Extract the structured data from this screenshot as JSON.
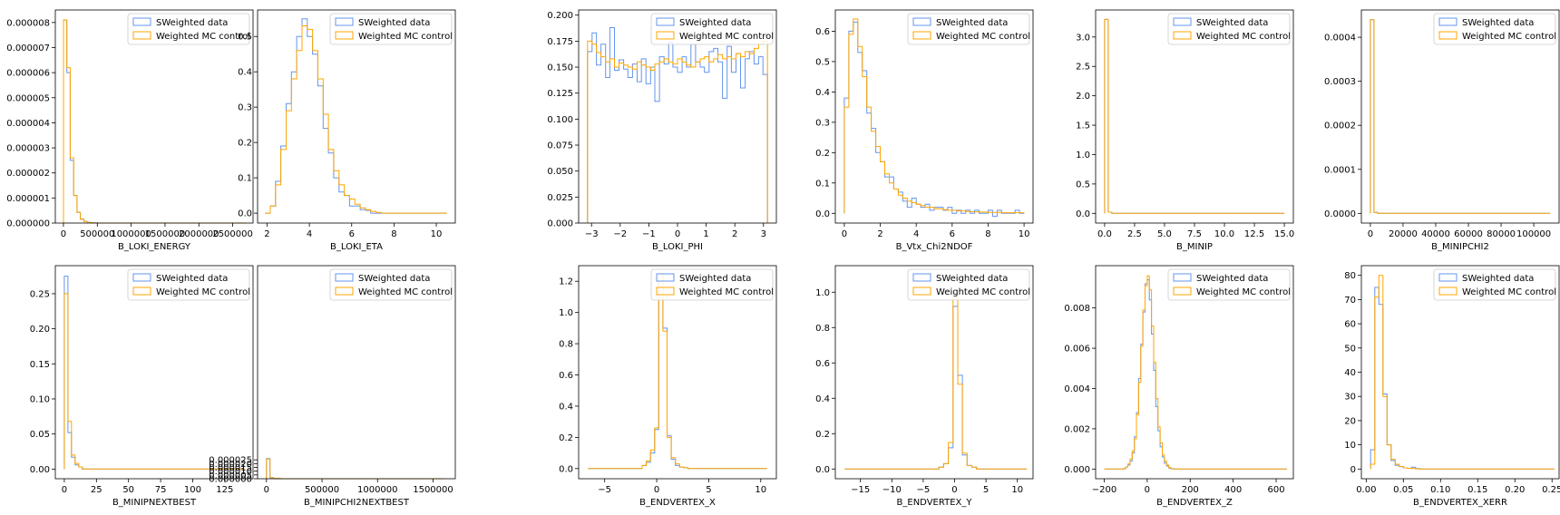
{
  "colors": {
    "sweighted": "#6495ED",
    "weighted_mc": "#FFA500"
  },
  "legend": {
    "sweighted_label": "SWeighted data",
    "weighted_mc_label": "Weighted MC control"
  },
  "chart_data": [
    {
      "type": "histogram",
      "xlabel": "B_LOKI_ENERGY",
      "legend_position": "top-right",
      "xlim": [
        -120000,
        2800000
      ],
      "ylim": [
        0,
        8.5e-06
      ],
      "xticks": [
        0,
        500000,
        1000000,
        1500000,
        2000000,
        2500000
      ],
      "xtick_labels": [
        "0",
        "500000",
        "1000000",
        "1500000",
        "2000000",
        "2500000"
      ],
      "yticks": [
        0,
        1e-06,
        2e-06,
        3e-06,
        4e-06,
        5e-06,
        6e-06,
        7e-06,
        8e-06
      ],
      "ytick_labels": [
        "0.000000",
        "0.000001",
        "0.000002",
        "0.000003",
        "0.000004",
        "0.000005",
        "0.000006",
        "0.000007",
        "0.000008"
      ],
      "bins": [
        0,
        50000,
        100000,
        150000,
        200000,
        250000,
        300000,
        350000,
        400000,
        450000,
        500000,
        550000,
        600000,
        2700000
      ],
      "sweighted": [
        8.1e-06,
        6e-06,
        2.5e-06,
        1.1e-06,
        4.3e-07,
        1.6e-07,
        7e-08,
        3e-08,
        1e-08,
        5e-09,
        0,
        0,
        0
      ],
      "weighted_mc": [
        8.1e-06,
        6.2e-06,
        2.6e-06,
        1.1e-06,
        4.2e-07,
        1.5e-07,
        6e-08,
        2e-08,
        1e-08,
        5e-09,
        0,
        0,
        0
      ]
    },
    {
      "type": "histogram",
      "xlabel": "B_LOKI_ETA",
      "legend_position": "top-right",
      "xlim": [
        1.55,
        10.9
      ],
      "ylim": [
        -0.028,
        0.575
      ],
      "xticks": [
        2,
        4,
        6,
        8,
        10
      ],
      "xtick_labels": [
        "2",
        "4",
        "6",
        "8",
        "10"
      ],
      "yticks": [
        0,
        0.1,
        0.2,
        0.3,
        0.4,
        0.5
      ],
      "ytick_labels": [
        "0.0",
        "0.1",
        "0.2",
        "0.3",
        "0.4",
        "0.5"
      ],
      "bins": [
        1.9,
        2.15,
        2.4,
        2.65,
        2.9,
        3.15,
        3.4,
        3.65,
        3.9,
        4.15,
        4.4,
        4.65,
        4.9,
        5.15,
        5.4,
        5.65,
        5.9,
        6.15,
        6.4,
        6.65,
        6.9,
        7.15,
        7.4,
        7.65,
        7.9,
        10.5
      ],
      "sweighted": [
        0,
        0.02,
        0.09,
        0.19,
        0.31,
        0.4,
        0.5,
        0.55,
        0.5,
        0.45,
        0.36,
        0.24,
        0.17,
        0.1,
        0.06,
        0.05,
        0.02,
        0.02,
        0.01,
        0.008,
        0,
        0,
        0,
        0,
        0
      ],
      "weighted_mc": [
        0,
        0.02,
        0.08,
        0.18,
        0.29,
        0.38,
        0.46,
        0.53,
        0.52,
        0.46,
        0.38,
        0.28,
        0.18,
        0.12,
        0.08,
        0.05,
        0.04,
        0.025,
        0.015,
        0.01,
        0.005,
        0.002,
        0,
        0,
        0
      ]
    },
    {
      "type": "histogram",
      "xlabel": "B_LOKI_PHI",
      "legend_position": "top-right",
      "xlim": [
        -3.45,
        3.45
      ],
      "ylim": [
        0,
        0.205
      ],
      "xticks": [
        -3,
        -2,
        -1,
        0,
        1,
        2,
        3
      ],
      "xtick_labels": [
        "−3",
        "−2",
        "−1",
        "0",
        "1",
        "2",
        "3"
      ],
      "yticks": [
        0,
        0.025,
        0.05,
        0.075,
        0.1,
        0.125,
        0.15,
        0.175,
        0.2
      ],
      "ytick_labels": [
        "0.000",
        "0.025",
        "0.050",
        "0.075",
        "0.100",
        "0.125",
        "0.150",
        "0.175",
        "0.200"
      ],
      "bins": [
        -3.14,
        -2.98,
        -2.83,
        -2.67,
        -2.51,
        -2.36,
        -2.2,
        -2.04,
        -1.88,
        -1.73,
        -1.57,
        -1.41,
        -1.26,
        -1.1,
        -0.94,
        -0.79,
        -0.63,
        -0.47,
        -0.31,
        -0.16,
        0,
        0.16,
        0.31,
        0.47,
        0.63,
        0.79,
        0.94,
        1.1,
        1.26,
        1.41,
        1.57,
        1.73,
        1.88,
        2.04,
        2.2,
        2.36,
        2.51,
        2.67,
        2.83,
        2.98,
        3.14
      ],
      "sweighted": [
        0.165,
        0.183,
        0.152,
        0.172,
        0.14,
        0.188,
        0.147,
        0.157,
        0.148,
        0.14,
        0.153,
        0.136,
        0.158,
        0.134,
        0.15,
        0.117,
        0.16,
        0.153,
        0.174,
        0.15,
        0.145,
        0.16,
        0.15,
        0.172,
        0.155,
        0.15,
        0.145,
        0.165,
        0.168,
        0.155,
        0.12,
        0.17,
        0.145,
        0.163,
        0.13,
        0.158,
        0.165,
        0.153,
        0.16,
        0.143
      ],
      "weighted_mc": [
        0.175,
        0.172,
        0.164,
        0.16,
        0.155,
        0.158,
        0.15,
        0.154,
        0.152,
        0.15,
        0.148,
        0.155,
        0.152,
        0.15,
        0.147,
        0.153,
        0.155,
        0.158,
        0.155,
        0.153,
        0.158,
        0.155,
        0.152,
        0.15,
        0.155,
        0.158,
        0.16,
        0.155,
        0.158,
        0.162,
        0.158,
        0.16,
        0.158,
        0.163,
        0.16,
        0.165,
        0.163,
        0.168,
        0.172,
        0.175
      ]
    },
    {
      "type": "histogram",
      "xlabel": "B_Vtx_Chi2NDOF",
      "legend_position": "top-right",
      "xlim": [
        -0.5,
        10.5
      ],
      "ylim": [
        -0.032,
        0.67
      ],
      "xticks": [
        0,
        2,
        4,
        6,
        8,
        10
      ],
      "xtick_labels": [
        "0",
        "2",
        "4",
        "6",
        "8",
        "10"
      ],
      "yticks": [
        0,
        0.1,
        0.2,
        0.3,
        0.4,
        0.5,
        0.6
      ],
      "ytick_labels": [
        "0.0",
        "0.1",
        "0.2",
        "0.3",
        "0.4",
        "0.5",
        "0.6"
      ],
      "bins": [
        0,
        0.25,
        0.5,
        0.75,
        1,
        1.25,
        1.5,
        1.75,
        2,
        2.25,
        2.5,
        2.75,
        3,
        3.25,
        3.5,
        3.75,
        4,
        4.25,
        4.5,
        4.75,
        5,
        5.25,
        5.5,
        5.75,
        6,
        6.25,
        6.5,
        6.75,
        7,
        7.25,
        7.5,
        7.75,
        8,
        8.25,
        8.5,
        8.75,
        9,
        9.25,
        9.5,
        9.75,
        10
      ],
      "sweighted": [
        0.38,
        0.6,
        0.63,
        0.53,
        0.47,
        0.33,
        0.28,
        0.2,
        0.17,
        0.12,
        0.12,
        0.08,
        0.07,
        0.04,
        0.02,
        0.05,
        0.03,
        0.02,
        0.03,
        0.01,
        0.02,
        0.02,
        0.01,
        0.02,
        0,
        0.01,
        0,
        0.01,
        0,
        0.01,
        0,
        0,
        0.01,
        -0.01,
        0.01,
        0,
        0,
        0,
        0.01,
        0
      ],
      "weighted_mc": [
        0.35,
        0.59,
        0.64,
        0.55,
        0.45,
        0.35,
        0.27,
        0.22,
        0.17,
        0.13,
        0.1,
        0.08,
        0.06,
        0.05,
        0.04,
        0.035,
        0.03,
        0.025,
        0.02,
        0.02,
        0.015,
        0.015,
        0.012,
        0.01,
        0.01,
        0.008,
        0.008,
        0.006,
        0.005,
        0.005,
        0.004,
        0.004,
        0.003,
        0.003,
        0.003,
        0.002,
        0.002,
        0.002,
        0.002,
        0.002
      ]
    },
    {
      "type": "histogram",
      "xlabel": "B_MINIP",
      "legend_position": "top-right",
      "xlim": [
        -0.75,
        15.75
      ],
      "ylim": [
        -0.165,
        3.46
      ],
      "xticks": [
        0,
        2.5,
        5,
        7.5,
        10,
        12.5,
        15
      ],
      "xtick_labels": [
        "0.0",
        "2.5",
        "5.0",
        "7.5",
        "10.0",
        "12.5",
        "15.0"
      ],
      "yticks": [
        0,
        0.5,
        1,
        1.5,
        2,
        2.5,
        3
      ],
      "ytick_labels": [
        "0.0",
        "0.5",
        "1.0",
        "1.5",
        "2.0",
        "2.5",
        "3.0"
      ],
      "bins": [
        0,
        0.3,
        0.6,
        15
      ],
      "sweighted": [
        3.3,
        0.02,
        0
      ],
      "weighted_mc": [
        3.3,
        0.02,
        0
      ]
    },
    {
      "type": "histogram",
      "xlabel": "B_MINIPCHI2",
      "legend_position": "top-right",
      "xlim": [
        -5500,
        115500
      ],
      "ylim": [
        -2.2e-05,
        0.000462
      ],
      "xticks": [
        0,
        20000,
        40000,
        60000,
        80000,
        100000
      ],
      "xtick_labels": [
        "0",
        "20000",
        "40000",
        "60000",
        "80000",
        "100000"
      ],
      "yticks": [
        0,
        0.0001,
        0.0002,
        0.0003,
        0.0004
      ],
      "ytick_labels": [
        "0.0000",
        "0.0001",
        "0.0002",
        "0.0003",
        "0.0004"
      ],
      "bins": [
        0,
        2200,
        4400,
        110000
      ],
      "sweighted": [
        0.00044,
        2e-06,
        0
      ],
      "weighted_mc": [
        0.00044,
        2e-06,
        0
      ]
    },
    {
      "type": "histogram",
      "xlabel": "B_MINIPNEXTBEST",
      "legend_position": "top-right",
      "xlim": [
        -7,
        147
      ],
      "ylim": [
        -0.0138,
        0.29
      ],
      "xticks": [
        0,
        25,
        50,
        75,
        100,
        125
      ],
      "xtick_labels": [
        "0",
        "25",
        "50",
        "75",
        "100",
        "125"
      ],
      "yticks": [
        0,
        0.05,
        0.1,
        0.15,
        0.2,
        0.25
      ],
      "ytick_labels": [
        "0.00",
        "0.05",
        "0.10",
        "0.15",
        "0.20",
        "0.25"
      ],
      "bins": [
        0,
        2.8,
        5.6,
        8.4,
        11.2,
        14,
        140
      ],
      "sweighted": [
        0.275,
        0.052,
        0.017,
        0.006,
        0.003,
        0
      ],
      "weighted_mc": [
        0.25,
        0.068,
        0.02,
        0.008,
        0.003,
        0
      ]
    },
    {
      "type": "histogram",
      "xlabel": "B_MINIPCHI2NEXTBEST",
      "legend_position": "top-right",
      "xlim": [
        -80000,
        1700000
      ],
      "ylim": [
        0,
        0.000282
      ],
      "xticks": [
        0,
        500000,
        1000000,
        1500000
      ],
      "xtick_labels": [
        "0",
        "500000",
        "1000000",
        "1500000"
      ],
      "yticks": [
        0,
        5e-06,
        1e-05,
        1.5e-05,
        2e-05,
        2.5e-05
      ],
      "ytick_labels": [
        "0.000000",
        "0.000005",
        "0.000010",
        "0.000015",
        "0.000020",
        "0.000025"
      ],
      "bins": [
        0,
        32000,
        64000,
        96000,
        128000,
        1600000
      ],
      "sweighted": [
        2.68e-05,
        1.3e-06,
        4e-07,
        1e-07,
        0
      ],
      "weighted_mc": [
        2.6e-05,
        1.4e-06,
        5e-07,
        2e-07,
        0
      ]
    },
    {
      "type": "histogram",
      "xlabel": "B_ENDVERTEX_X",
      "legend_position": "top-right",
      "xlim": [
        -7.5,
        11.5
      ],
      "ylim": [
        -0.065,
        1.3
      ],
      "xticks": [
        -5,
        0,
        5,
        10
      ],
      "xtick_labels": [
        "−5",
        "0",
        "5",
        "10"
      ],
      "yticks": [
        0,
        0.2,
        0.4,
        0.6,
        0.8,
        1,
        1.2
      ],
      "ytick_labels": [
        "0.0",
        "0.2",
        "0.4",
        "0.6",
        "0.8",
        "1.0",
        "1.2"
      ],
      "bins": [
        -6.6,
        -1.4,
        -1.0,
        -0.6,
        -0.2,
        0.2,
        0.6,
        1.0,
        1.4,
        1.8,
        2.2,
        2.6,
        3.0,
        10.6
      ],
      "sweighted": [
        0,
        0.02,
        0.04,
        0.1,
        0.25,
        1.2,
        0.9,
        0.21,
        0.06,
        0.02,
        0.01,
        0.005,
        0
      ],
      "weighted_mc": [
        0,
        0.02,
        0.05,
        0.12,
        0.26,
        1.25,
        0.88,
        0.2,
        0.07,
        0.03,
        0.01,
        0.005,
        0
      ]
    },
    {
      "type": "histogram",
      "xlabel": "B_ENDVERTEX_Y",
      "legend_position": "top-right",
      "xlim": [
        -19,
        12.5
      ],
      "ylim": [
        -0.055,
        1.15
      ],
      "xticks": [
        -15,
        -10,
        -5,
        0,
        5,
        10
      ],
      "xtick_labels": [
        "−15",
        "−10",
        "−5",
        "0",
        "5",
        "10"
      ],
      "yticks": [
        0,
        0.2,
        0.4,
        0.6,
        0.8,
        1
      ],
      "ytick_labels": [
        "0.0",
        "0.2",
        "0.4",
        "0.6",
        "0.8",
        "1.0"
      ],
      "bins": [
        -17.5,
        -2.5,
        -1.75,
        -1.0,
        -0.25,
        0.5,
        1.25,
        2.0,
        2.75,
        3.5,
        11.5
      ],
      "sweighted": [
        0,
        0.01,
        0.03,
        0.12,
        0.92,
        0.53,
        0.08,
        0.02,
        0.01,
        0
      ],
      "weighted_mc": [
        0,
        0.01,
        0.03,
        0.15,
        0.98,
        0.48,
        0.09,
        0.02,
        0.01,
        0
      ]
    },
    {
      "type": "histogram",
      "xlabel": "B_ENDVERTEX_Z",
      "legend_position": "top-right",
      "xlim": [
        -240,
        680
      ],
      "ylim": [
        -0.00048,
        0.0101
      ],
      "xticks": [
        -200,
        0,
        200,
        400,
        600
      ],
      "xtick_labels": [
        "−200",
        "0",
        "200",
        "400",
        "600"
      ],
      "yticks": [
        0,
        0.002,
        0.004,
        0.006,
        0.008
      ],
      "ytick_labels": [
        "0.000",
        "0.002",
        "0.004",
        "0.006",
        "0.008"
      ],
      "bins": [
        -200,
        -110,
        -100,
        -90,
        -80,
        -70,
        -60,
        -50,
        -40,
        -30,
        -20,
        -10,
        0,
        10,
        20,
        30,
        40,
        50,
        60,
        70,
        80,
        90,
        100,
        110,
        120,
        130,
        650
      ],
      "sweighted": [
        0,
        2e-05,
        0.0001,
        0.0002,
        0.0004,
        0.0008,
        0.0016,
        0.0028,
        0.0045,
        0.0062,
        0.0078,
        0.0092,
        0.0094,
        0.0084,
        0.0067,
        0.0049,
        0.0031,
        0.0019,
        0.0011,
        0.0006,
        0.0003,
        0.00015,
        5e-05,
        2e-05,
        0,
        0
      ],
      "weighted_mc": [
        0,
        3e-05,
        0.0001,
        0.00025,
        0.0005,
        0.0009,
        0.0015,
        0.0027,
        0.0043,
        0.0061,
        0.0079,
        0.0091,
        0.0096,
        0.0089,
        0.0071,
        0.0053,
        0.0035,
        0.0021,
        0.0013,
        0.0007,
        0.0004,
        0.0002,
        8e-05,
        3e-05,
        1e-05,
        0
      ]
    },
    {
      "type": "histogram",
      "xlabel": "B_ENDVERTEX_XERR",
      "legend_position": "top-right",
      "xlim": [
        -0.0065,
        0.2595
      ],
      "ylim": [
        -4,
        84
      ],
      "xticks": [
        0,
        0.05,
        0.1,
        0.15,
        0.2,
        0.25
      ],
      "xtick_labels": [
        "0.00",
        "0.05",
        "0.10",
        "0.15",
        "0.20",
        "0.25"
      ],
      "yticks": [
        0,
        10,
        20,
        30,
        40,
        50,
        60,
        70,
        80
      ],
      "ytick_labels": [
        "0",
        "10",
        "20",
        "30",
        "40",
        "50",
        "60",
        "70",
        "80"
      ],
      "bins": [
        0.006,
        0.0115,
        0.017,
        0.0225,
        0.028,
        0.0335,
        0.039,
        0.0445,
        0.05,
        0.0555,
        0.061,
        0.0665,
        0.072,
        0.253
      ],
      "sweighted": [
        8,
        75,
        68,
        31,
        10,
        3.5,
        1.5,
        1,
        0.5,
        0.3,
        0.8,
        0.2,
        0
      ],
      "weighted_mc": [
        2,
        71,
        80,
        30,
        10,
        4,
        2,
        1,
        0.5,
        0.3,
        0.2,
        0.1,
        0
      ]
    }
  ]
}
